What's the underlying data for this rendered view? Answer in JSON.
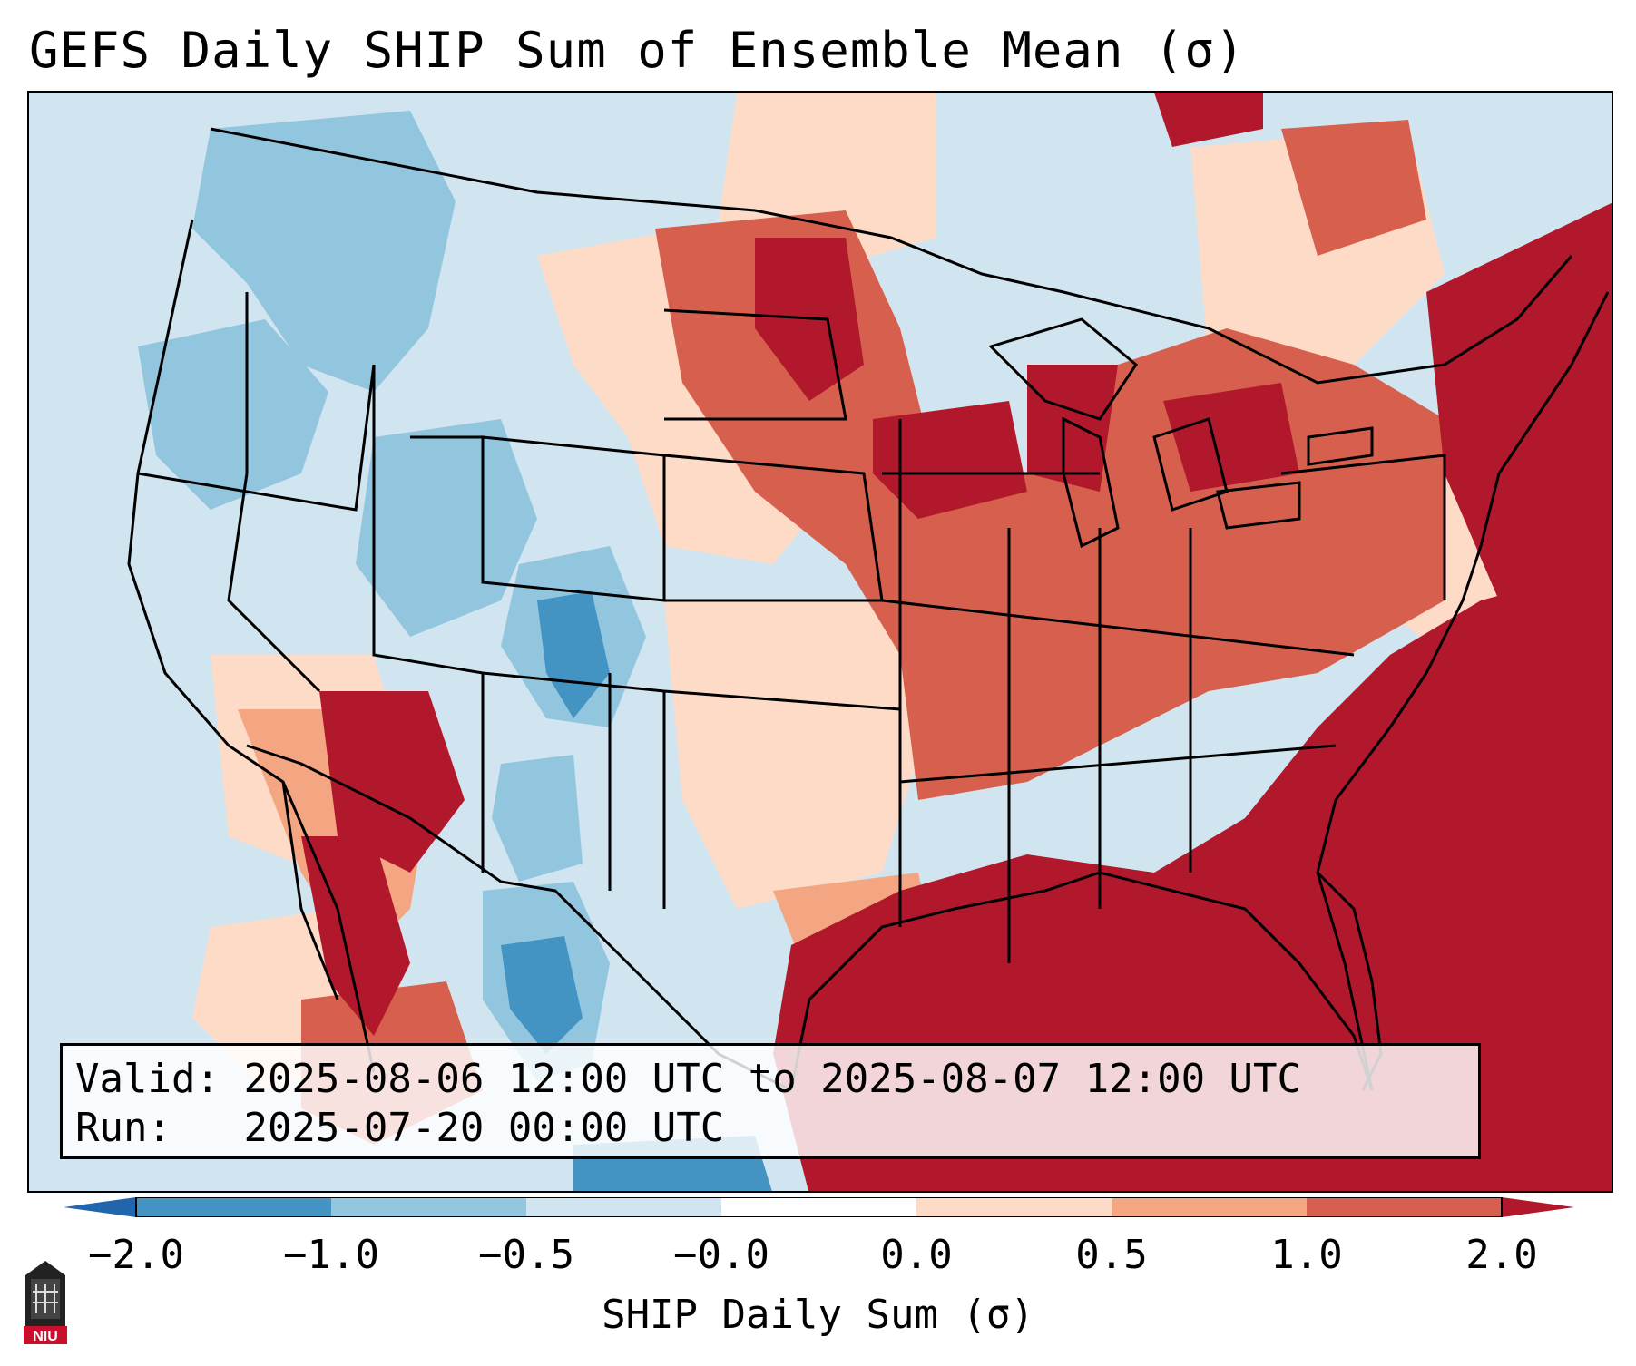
{
  "header": {
    "title": "GEFS Daily SHIP Sum of Ensemble Mean (σ)"
  },
  "info": {
    "valid_label": "Valid:",
    "valid_value": "2025-08-06 12:00 UTC to 2025-08-07 12:00 UTC",
    "run_label": "Run:",
    "run_value": "2025-07-20 00:00 UTC"
  },
  "colorbar": {
    "label": "SHIP Daily Sum (σ)",
    "ticks": [
      "−2.0",
      "−1.0",
      "−0.5",
      "−0.0",
      "0.0",
      "0.5",
      "1.0",
      "2.0"
    ],
    "colors": [
      "#2166ac",
      "#4393c3",
      "#92c5de",
      "#d1e5f0",
      "#ffffff",
      "#fddbc7",
      "#f4a582",
      "#d6604d",
      "#b2182b"
    ],
    "extend": "both"
  },
  "map": {
    "region": "Contiguous United States",
    "anomaly_colors": {
      "strong_positive": "#b2182b",
      "positive": "#d6604d",
      "weak_positive": "#f4a582",
      "slight_positive": "#fddbc7",
      "slight_negative": "#d1e5f0",
      "negative": "#92c5de",
      "strong_negative": "#4393c3"
    }
  },
  "logo": {
    "text": "NIU"
  }
}
